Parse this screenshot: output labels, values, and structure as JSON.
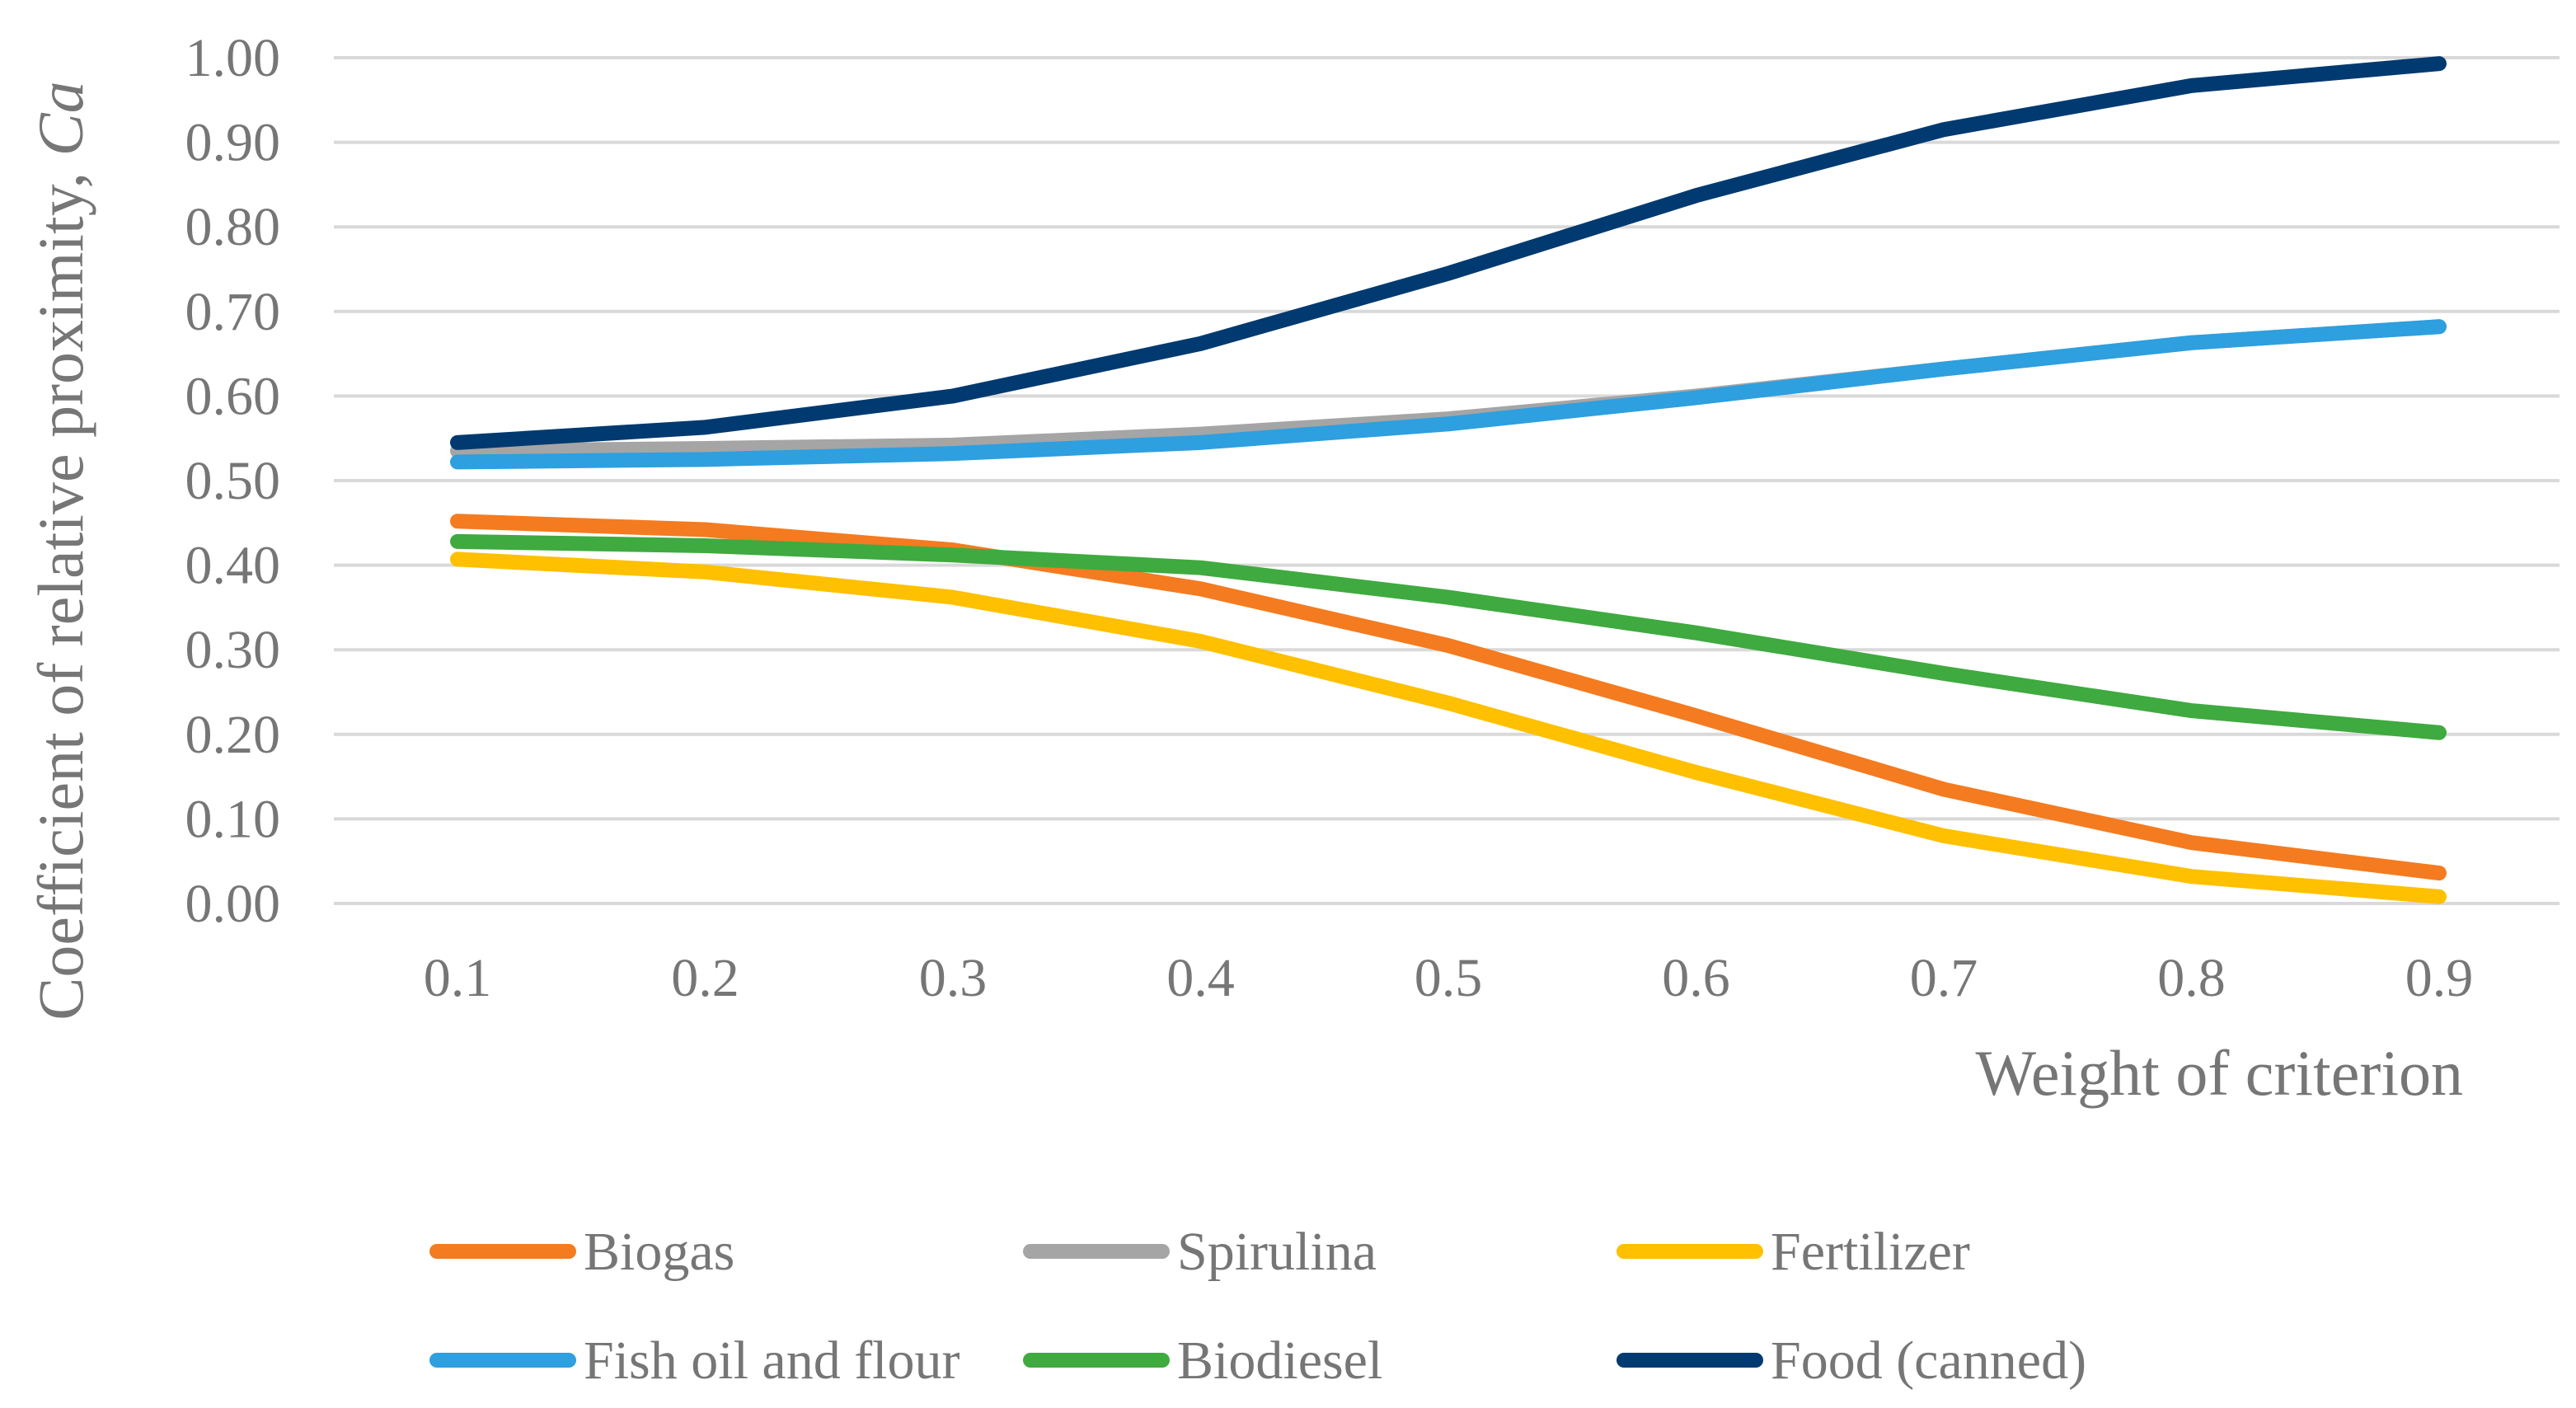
{
  "chart_data": {
    "type": "line",
    "x": [
      "0.1",
      "0.2",
      "0.3",
      "0.4",
      "0.5",
      "0.6",
      "0.7",
      "0.8",
      "0.9"
    ],
    "xlabel": "Weight of criterion",
    "ylabel_main": "Coefficient of relative proximity, ",
    "ylabel_italic": "Ca",
    "ylim": [
      0,
      1.0
    ],
    "y_ticks": [
      "0.00",
      "0.10",
      "0.20",
      "0.30",
      "0.40",
      "0.50",
      "0.60",
      "0.70",
      "0.80",
      "0.90",
      "1.00"
    ],
    "grid": true,
    "legend_position": "bottom",
    "series": [
      {
        "name": "Biogas",
        "color": "#F47B20",
        "values": [
          0.452,
          0.442,
          0.418,
          0.372,
          0.305,
          0.222,
          0.135,
          0.072,
          0.036
        ]
      },
      {
        "name": "Spirulina",
        "color": "#A5A5A5",
        "values": [
          0.535,
          0.538,
          0.542,
          0.555,
          0.573,
          0.6,
          0.632,
          0.663,
          0.682
        ]
      },
      {
        "name": "Fertilizer",
        "color": "#FFC000",
        "values": [
          0.407,
          0.392,
          0.362,
          0.31,
          0.237,
          0.155,
          0.08,
          0.032,
          0.008
        ]
      },
      {
        "name": "Fish oil and flour",
        "color": "#2E9FDF",
        "values": [
          0.522,
          0.525,
          0.532,
          0.545,
          0.567,
          0.598,
          0.632,
          0.663,
          0.682
        ]
      },
      {
        "name": "Biodiesel",
        "color": "#3FAA3F",
        "values": [
          0.428,
          0.423,
          0.412,
          0.397,
          0.362,
          0.32,
          0.272,
          0.228,
          0.202
        ]
      },
      {
        "name": "Food (canned)",
        "color": "#003A70",
        "values": [
          0.545,
          0.563,
          0.6,
          0.662,
          0.745,
          0.837,
          0.915,
          0.967,
          0.993
        ]
      }
    ]
  }
}
